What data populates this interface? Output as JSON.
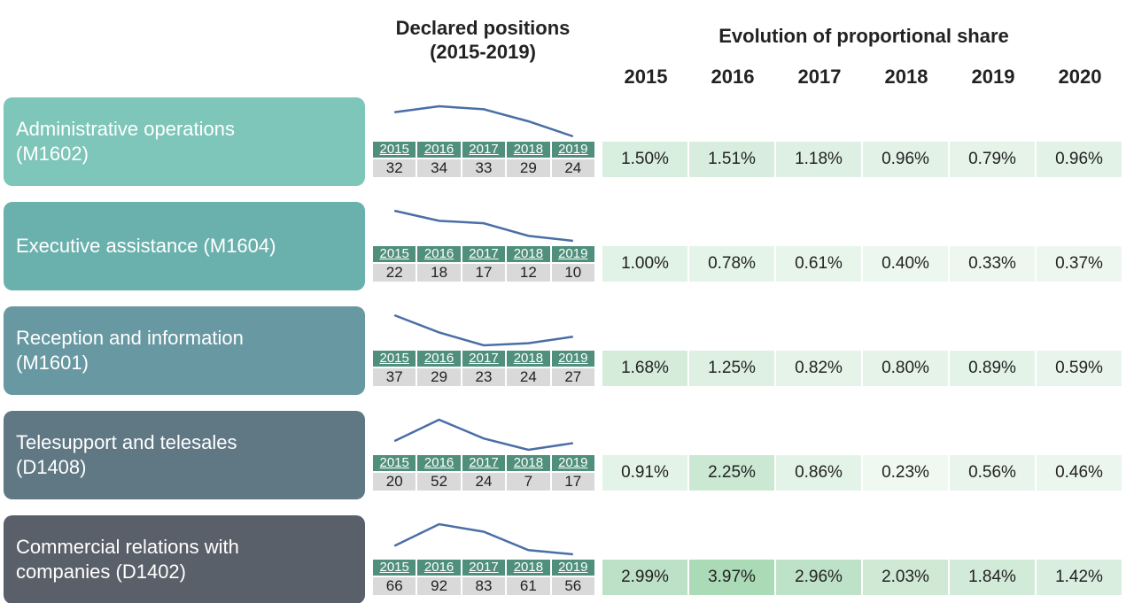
{
  "header": {
    "positions_title": "Declared positions",
    "positions_period": "(2015-2019)",
    "share_title": "Evolution of proportional share",
    "share_years": [
      "2015",
      "2016",
      "2017",
      "2018",
      "2019",
      "2020"
    ]
  },
  "position_years": [
    "2015",
    "2016",
    "2017",
    "2018",
    "2019"
  ],
  "rows": [
    {
      "label": "Administrative operations (M1602)",
      "color": "#7ec6b9",
      "positions": [
        32,
        34,
        33,
        29,
        24
      ],
      "shares": [
        "1.50%",
        "1.51%",
        "1.18%",
        "0.96%",
        "0.79%",
        "0.96%"
      ]
    },
    {
      "label": "Executive assistance (M1604)",
      "color": "#6ab1ad",
      "positions": [
        22,
        18,
        17,
        12,
        10
      ],
      "shares": [
        "1.00%",
        "0.78%",
        "0.61%",
        "0.40%",
        "0.33%",
        "0.37%"
      ]
    },
    {
      "label": "Reception and information (M1601)",
      "color": "#6899a2",
      "positions": [
        37,
        29,
        23,
        24,
        27
      ],
      "shares": [
        "1.68%",
        "1.25%",
        "0.82%",
        "0.80%",
        "0.89%",
        "0.59%"
      ]
    },
    {
      "label": "Telesupport and telesales (D1408)",
      "color": "#5f7884",
      "positions": [
        20,
        52,
        24,
        7,
        17
      ],
      "shares": [
        "0.91%",
        "2.25%",
        "0.86%",
        "0.23%",
        "0.56%",
        "0.46%"
      ]
    },
    {
      "label": "Commercial relations with companies (D1402)",
      "color": "#5a6069",
      "positions": [
        66,
        92,
        83,
        61,
        56
      ],
      "shares": [
        "2.99%",
        "3.97%",
        "2.96%",
        "2.03%",
        "1.84%",
        "1.42%"
      ]
    }
  ]
}
